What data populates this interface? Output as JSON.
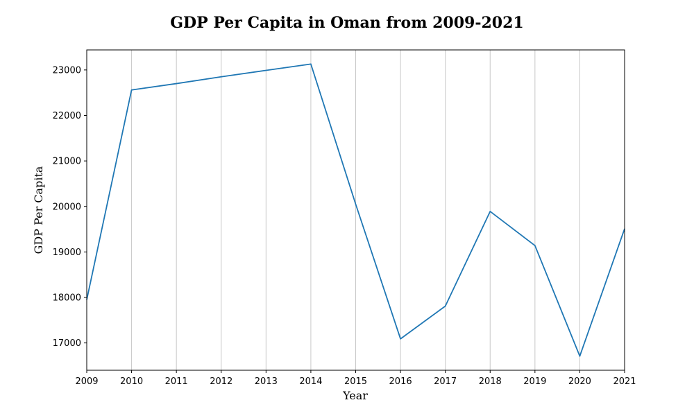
{
  "chart_data": {
    "type": "line",
    "title": "GDP Per Capita in Oman from 2009-2021",
    "xlabel": "Year",
    "ylabel": "GDP Per Capita",
    "x": [
      2009,
      2010,
      2011,
      2012,
      2013,
      2014,
      2015,
      2016,
      2017,
      2018,
      2019,
      2020,
      2021
    ],
    "series": [
      {
        "values": [
          17950,
          22560,
          22700,
          22850,
          22990,
          23130,
          20050,
          17090,
          17810,
          19890,
          19140,
          16710,
          19510
        ]
      }
    ],
    "xlim": [
      2009,
      2021
    ],
    "ylim": [
      16400,
      23440
    ],
    "yticks": [
      17000,
      18000,
      19000,
      20000,
      21000,
      22000,
      23000
    ],
    "grid": "vertical",
    "line_color": "#1f77b4"
  }
}
